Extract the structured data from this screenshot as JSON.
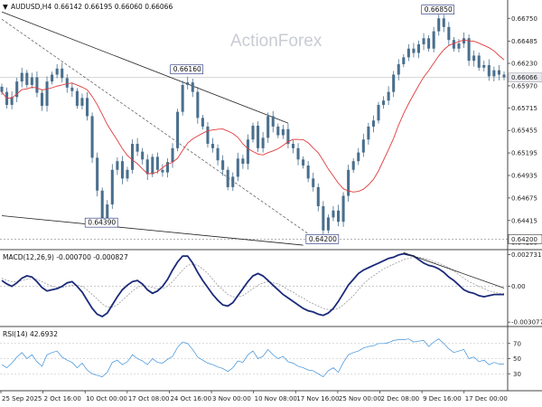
{
  "chart_data": {
    "type": "candlestick",
    "symbol_header": "AUDUSD,H4",
    "ohlc_header": "0.66142 0.66195 0.66060 0.66066",
    "watermark": "ActionForex",
    "colors": {
      "candle": "#4a6f8d",
      "ma": "#e03b3b",
      "trendline": "#222222",
      "dashed_line": "#666666",
      "macd_main": "#1b2a7a",
      "macd_signal": "#9a9a9a",
      "rsi": "#3b8fd8",
      "label_border": "#1b2a7a",
      "current_price_box": "#e8eaf0"
    },
    "price_axis": {
      "ticks": [
        "0.66750",
        "0.66485",
        "0.66230",
        "0.65970",
        "0.65715",
        "0.65455",
        "0.65195",
        "0.64935",
        "0.64675",
        "0.64415",
        "0.64160"
      ],
      "current_price": "0.66066",
      "lowest_box": "0.64200",
      "range": [
        0.6412,
        0.6692
      ]
    },
    "price_labels": [
      {
        "text": "0.66850",
        "value": 0.6685,
        "bar": 87
      },
      {
        "text": "0.66160",
        "value": 0.6616,
        "bar": 37
      },
      {
        "text": "0.64390",
        "value": 0.6439,
        "bar": 20
      },
      {
        "text": "0.64200",
        "value": 0.642,
        "bar": 64
      }
    ],
    "x_labels": [
      "25 Sep 2025",
      "2 Oct 16:00",
      "10 Oct 00:00",
      "17 Oct 08:00",
      "24 Oct 16:00",
      "3 Nov 00:00",
      "10 Nov 08:00",
      "17 Nov 16:00",
      "25 Nov 00:00",
      "2 Dec 08:00",
      "9 Dec 16:00",
      "17 Dec 00:00"
    ],
    "closes": [
      0.659,
      0.6575,
      0.6584,
      0.6602,
      0.6612,
      0.6598,
      0.6607,
      0.6589,
      0.6574,
      0.6602,
      0.661,
      0.6617,
      0.6606,
      0.6595,
      0.6591,
      0.6574,
      0.6583,
      0.6562,
      0.6514,
      0.6476,
      0.6439,
      0.646,
      0.65,
      0.651,
      0.649,
      0.65,
      0.653,
      0.6521,
      0.6512,
      0.6495,
      0.6515,
      0.65,
      0.6497,
      0.6509,
      0.6525,
      0.6567,
      0.6598,
      0.6601,
      0.659,
      0.656,
      0.655,
      0.653,
      0.6525,
      0.6511,
      0.65,
      0.648,
      0.6492,
      0.6513,
      0.6507,
      0.6535,
      0.6551,
      0.6525,
      0.6537,
      0.6562,
      0.655,
      0.654,
      0.6547,
      0.653,
      0.6525,
      0.6512,
      0.6505,
      0.649,
      0.648,
      0.6458,
      0.643,
      0.6445,
      0.6453,
      0.644,
      0.647,
      0.65,
      0.651,
      0.652,
      0.6535,
      0.655,
      0.6557,
      0.6575,
      0.658,
      0.659,
      0.661,
      0.6622,
      0.663,
      0.664,
      0.6635,
      0.6645,
      0.6652,
      0.664,
      0.666,
      0.6675,
      0.6665,
      0.665,
      0.664,
      0.6646,
      0.6652,
      0.6626,
      0.6632,
      0.6618,
      0.6621,
      0.6608,
      0.6615,
      0.661,
      0.6607
    ],
    "macd": {
      "label": "MACD(12,26,9) -0.000700 -0.000827",
      "ticks": [
        "0.002731",
        "0.00",
        "-0.003077"
      ],
      "range": [
        -0.0033,
        0.003
      ],
      "main": [
        0.0005,
        0.0002,
        0.0,
        0.0003,
        0.0007,
        0.0009,
        0.0008,
        0.0004,
        -0.0001,
        -0.0004,
        -0.0003,
        -0.0002,
        0.0,
        0.0003,
        0.0004,
        0.0,
        -0.0005,
        -0.0012,
        -0.0019,
        -0.0024,
        -0.0026,
        -0.0023,
        -0.0016,
        -0.0009,
        -0.0003,
        0.0001,
        0.0004,
        0.0005,
        0.0002,
        -0.0003,
        -0.0006,
        -0.0004,
        0.0,
        0.0006,
        0.0014,
        0.0021,
        0.0026,
        0.0026,
        0.002,
        0.0012,
        0.0005,
        -0.0001,
        -0.0007,
        -0.0012,
        -0.0016,
        -0.0017,
        -0.0014,
        -0.0008,
        -0.0002,
        0.0004,
        0.0009,
        0.0011,
        0.0009,
        0.0005,
        0.0001,
        -0.0003,
        -0.0007,
        -0.001,
        -0.0013,
        -0.0016,
        -0.0019,
        -0.0021,
        -0.0022,
        -0.0024,
        -0.0025,
        -0.0023,
        -0.0019,
        -0.0013,
        -0.0006,
        0.0001,
        0.0006,
        0.0011,
        0.0014,
        0.0016,
        0.0018,
        0.002,
        0.0022,
        0.0024,
        0.0025,
        0.0027,
        0.0028,
        0.0027,
        0.0026,
        0.0023,
        0.002,
        0.0018,
        0.0017,
        0.0015,
        0.0012,
        0.0008,
        0.0005,
        0.0001,
        -0.0003,
        -0.0005,
        -0.0006,
        -0.0008,
        -0.0009,
        -0.0008,
        -0.0007,
        -0.0007,
        -0.0007
      ],
      "signal": [
        0.0007,
        0.0005,
        0.0004,
        0.0004,
        0.0005,
        0.0006,
        0.0007,
        0.0006,
        0.0004,
        0.0002,
        0.0,
        -0.0001,
        -0.0001,
        0.0,
        0.0001,
        0.0001,
        0.0,
        -0.0003,
        -0.0007,
        -0.0011,
        -0.0015,
        -0.0018,
        -0.0018,
        -0.0016,
        -0.0012,
        -0.0008,
        -0.0004,
        -0.0001,
        0.0001,
        0.0,
        -0.0001,
        -0.0002,
        -0.0002,
        0.0,
        0.0004,
        0.0009,
        0.0014,
        0.0018,
        0.0019,
        0.0018,
        0.0015,
        0.0011,
        0.0006,
        0.0001,
        -0.0003,
        -0.0007,
        -0.0009,
        -0.0009,
        -0.0008,
        -0.0005,
        -0.0002,
        0.0001,
        0.0003,
        0.0004,
        0.0003,
        0.0002,
        0.0,
        -0.0003,
        -0.0005,
        -0.0008,
        -0.001,
        -0.0013,
        -0.0015,
        -0.0017,
        -0.0019,
        -0.002,
        -0.002,
        -0.0019,
        -0.0016,
        -0.0012,
        -0.0008,
        -0.0003,
        0.0002,
        0.0006,
        0.0009,
        0.0012,
        0.0015,
        0.0017,
        0.0019,
        0.0021,
        0.0023,
        0.0024,
        0.0025,
        0.0025,
        0.0024,
        0.0023,
        0.0021,
        0.002,
        0.0018,
        0.0016,
        0.0013,
        0.001,
        0.0007,
        0.0004,
        0.0002,
        0.0,
        -0.0002,
        -0.0004,
        -0.0005,
        -0.0006,
        -0.0006
      ]
    },
    "rsi": {
      "label": "RSI(14) 42.6932",
      "ticks": [
        "70",
        "50",
        "30"
      ],
      "range": [
        10,
        90
      ],
      "values": [
        42,
        38,
        44,
        52,
        58,
        50,
        55,
        46,
        40,
        55,
        58,
        60,
        52,
        48,
        45,
        38,
        44,
        35,
        30,
        28,
        26,
        32,
        45,
        48,
        42,
        46,
        55,
        50,
        47,
        42,
        50,
        45,
        44,
        49,
        53,
        65,
        72,
        70,
        62,
        52,
        48,
        44,
        42,
        39,
        37,
        33,
        38,
        47,
        45,
        55,
        60,
        50,
        53,
        62,
        55,
        50,
        53,
        46,
        44,
        40,
        38,
        35,
        34,
        30,
        26,
        34,
        38,
        32,
        45,
        55,
        58,
        60,
        64,
        66,
        67,
        70,
        70,
        71,
        74,
        75,
        75,
        76,
        72,
        73,
        74,
        66,
        72,
        76,
        70,
        63,
        58,
        60,
        62,
        50,
        52,
        46,
        48,
        42,
        45,
        43,
        43
      ]
    },
    "time_range": [
      0,
      100
    ],
    "price_range": [
      0.6412,
      0.6692
    ],
    "trendlines": [
      {
        "name": "upper-channel",
        "style": "solid",
        "from": {
          "bar": 0,
          "price": 0.66825
        },
        "to": {
          "bar": 57,
          "price": 0.6554
        }
      },
      {
        "name": "dashed-diagonal",
        "style": "dashed",
        "from": {
          "bar": 0,
          "price": 0.6674
        },
        "to": {
          "bar": 63,
          "price": 0.6418
        }
      },
      {
        "name": "lower-channel",
        "style": "solid",
        "from": {
          "bar": 0,
          "price": 0.6447
        },
        "to": {
          "bar": 60,
          "price": 0.6413
        }
      },
      {
        "name": "macd-trendline",
        "style": "solid",
        "from": {
          "bar": 80,
          "price": 0.0029
        },
        "to": {
          "bar": 100,
          "price": -0.00015
        }
      }
    ]
  }
}
